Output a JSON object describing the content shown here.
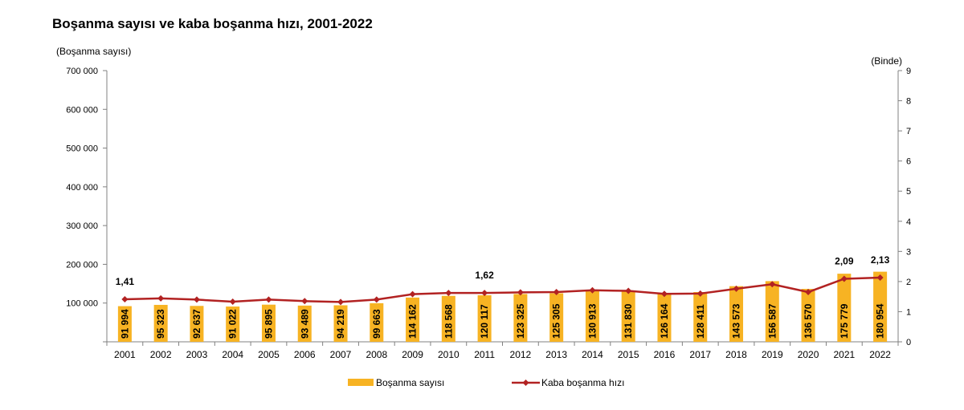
{
  "chart_data": {
    "type": "bar+line",
    "title": "Boşanma sayısı ve kaba boşanma hızı, 2001-2022",
    "y_left_label": "(Boşanma sayısı)",
    "y_right_label": "(Binde)",
    "y_left_ticks": [
      "700 000",
      "600 000",
      "500 000",
      "400 000",
      "300 000",
      "200 000",
      "100 000",
      ""
    ],
    "y_right_ticks": [
      "9",
      "8",
      "7",
      "6",
      "5",
      "4",
      "3",
      "2",
      "1",
      "0"
    ],
    "ylim_left": [
      0,
      700000
    ],
    "ylim_right": [
      0,
      9
    ],
    "categories": [
      "2001",
      "2002",
      "2003",
      "2004",
      "2005",
      "2006",
      "2007",
      "2008",
      "2009",
      "2010",
      "2011",
      "2012",
      "2013",
      "2014",
      "2015",
      "2016",
      "2017",
      "2018",
      "2019",
      "2020",
      "2021",
      "2022"
    ],
    "bars": {
      "name": "Boşanma sayısı",
      "color": "#F7B323",
      "values": [
        91994,
        95323,
        92637,
        91022,
        95895,
        93489,
        94219,
        99663,
        114162,
        118568,
        120117,
        123325,
        125305,
        130913,
        131830,
        126164,
        128411,
        143573,
        156587,
        136570,
        175779,
        180954
      ],
      "labels": [
        "91 994",
        "95 323",
        "92 637",
        "91 022",
        "95 895",
        "93 489",
        "94 219",
        "99 663",
        "114 162",
        "118 568",
        "120 117",
        "123 325",
        "125 305",
        "130 913",
        "131 830",
        "126 164",
        "128 411",
        "143 573",
        "156 587",
        "136 570",
        "175 779",
        "180 954"
      ]
    },
    "line": {
      "name": "Kaba boşanma hızı",
      "color": "#B22222",
      "values": [
        1.41,
        1.44,
        1.4,
        1.33,
        1.4,
        1.35,
        1.32,
        1.4,
        1.58,
        1.62,
        1.62,
        1.64,
        1.65,
        1.71,
        1.69,
        1.59,
        1.6,
        1.76,
        1.91,
        1.65,
        2.09,
        2.13
      ],
      "annotations": [
        {
          "index": 0,
          "text": "1,41"
        },
        {
          "index": 10,
          "text": "1,62"
        },
        {
          "index": 20,
          "text": "2,09"
        },
        {
          "index": 21,
          "text": "2,13"
        }
      ]
    },
    "legend_position": "bottom",
    "grid": false
  }
}
